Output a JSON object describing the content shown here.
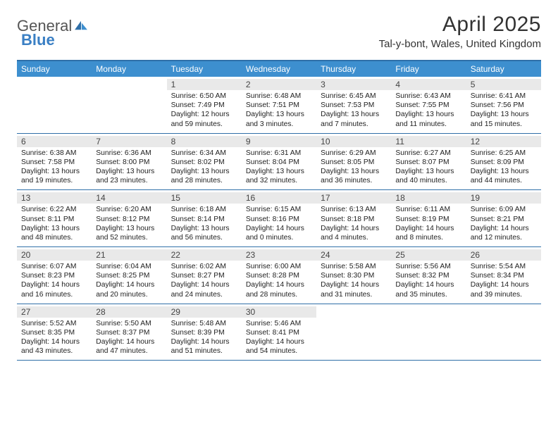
{
  "logo": {
    "text1": "General",
    "text2": "Blue"
  },
  "title": "April 2025",
  "location": "Tal-y-bont, Wales, United Kingdom",
  "colors": {
    "header_blue": "#3d8fcf",
    "rule_blue": "#2f6fa8",
    "daynum_bg": "#e9e9e9",
    "logo_blue": "#3a7fc4"
  },
  "weekdays": [
    "Sunday",
    "Monday",
    "Tuesday",
    "Wednesday",
    "Thursday",
    "Friday",
    "Saturday"
  ],
  "weeks": [
    [
      {
        "n": "",
        "sr": "",
        "ss": "",
        "dl1": "",
        "dl2": ""
      },
      {
        "n": "",
        "sr": "",
        "ss": "",
        "dl1": "",
        "dl2": ""
      },
      {
        "n": "1",
        "sr": "Sunrise: 6:50 AM",
        "ss": "Sunset: 7:49 PM",
        "dl1": "Daylight: 12 hours",
        "dl2": "and 59 minutes."
      },
      {
        "n": "2",
        "sr": "Sunrise: 6:48 AM",
        "ss": "Sunset: 7:51 PM",
        "dl1": "Daylight: 13 hours",
        "dl2": "and 3 minutes."
      },
      {
        "n": "3",
        "sr": "Sunrise: 6:45 AM",
        "ss": "Sunset: 7:53 PM",
        "dl1": "Daylight: 13 hours",
        "dl2": "and 7 minutes."
      },
      {
        "n": "4",
        "sr": "Sunrise: 6:43 AM",
        "ss": "Sunset: 7:55 PM",
        "dl1": "Daylight: 13 hours",
        "dl2": "and 11 minutes."
      },
      {
        "n": "5",
        "sr": "Sunrise: 6:41 AM",
        "ss": "Sunset: 7:56 PM",
        "dl1": "Daylight: 13 hours",
        "dl2": "and 15 minutes."
      }
    ],
    [
      {
        "n": "6",
        "sr": "Sunrise: 6:38 AM",
        "ss": "Sunset: 7:58 PM",
        "dl1": "Daylight: 13 hours",
        "dl2": "and 19 minutes."
      },
      {
        "n": "7",
        "sr": "Sunrise: 6:36 AM",
        "ss": "Sunset: 8:00 PM",
        "dl1": "Daylight: 13 hours",
        "dl2": "and 23 minutes."
      },
      {
        "n": "8",
        "sr": "Sunrise: 6:34 AM",
        "ss": "Sunset: 8:02 PM",
        "dl1": "Daylight: 13 hours",
        "dl2": "and 28 minutes."
      },
      {
        "n": "9",
        "sr": "Sunrise: 6:31 AM",
        "ss": "Sunset: 8:04 PM",
        "dl1": "Daylight: 13 hours",
        "dl2": "and 32 minutes."
      },
      {
        "n": "10",
        "sr": "Sunrise: 6:29 AM",
        "ss": "Sunset: 8:05 PM",
        "dl1": "Daylight: 13 hours",
        "dl2": "and 36 minutes."
      },
      {
        "n": "11",
        "sr": "Sunrise: 6:27 AM",
        "ss": "Sunset: 8:07 PM",
        "dl1": "Daylight: 13 hours",
        "dl2": "and 40 minutes."
      },
      {
        "n": "12",
        "sr": "Sunrise: 6:25 AM",
        "ss": "Sunset: 8:09 PM",
        "dl1": "Daylight: 13 hours",
        "dl2": "and 44 minutes."
      }
    ],
    [
      {
        "n": "13",
        "sr": "Sunrise: 6:22 AM",
        "ss": "Sunset: 8:11 PM",
        "dl1": "Daylight: 13 hours",
        "dl2": "and 48 minutes."
      },
      {
        "n": "14",
        "sr": "Sunrise: 6:20 AM",
        "ss": "Sunset: 8:12 PM",
        "dl1": "Daylight: 13 hours",
        "dl2": "and 52 minutes."
      },
      {
        "n": "15",
        "sr": "Sunrise: 6:18 AM",
        "ss": "Sunset: 8:14 PM",
        "dl1": "Daylight: 13 hours",
        "dl2": "and 56 minutes."
      },
      {
        "n": "16",
        "sr": "Sunrise: 6:15 AM",
        "ss": "Sunset: 8:16 PM",
        "dl1": "Daylight: 14 hours",
        "dl2": "and 0 minutes."
      },
      {
        "n": "17",
        "sr": "Sunrise: 6:13 AM",
        "ss": "Sunset: 8:18 PM",
        "dl1": "Daylight: 14 hours",
        "dl2": "and 4 minutes."
      },
      {
        "n": "18",
        "sr": "Sunrise: 6:11 AM",
        "ss": "Sunset: 8:19 PM",
        "dl1": "Daylight: 14 hours",
        "dl2": "and 8 minutes."
      },
      {
        "n": "19",
        "sr": "Sunrise: 6:09 AM",
        "ss": "Sunset: 8:21 PM",
        "dl1": "Daylight: 14 hours",
        "dl2": "and 12 minutes."
      }
    ],
    [
      {
        "n": "20",
        "sr": "Sunrise: 6:07 AM",
        "ss": "Sunset: 8:23 PM",
        "dl1": "Daylight: 14 hours",
        "dl2": "and 16 minutes."
      },
      {
        "n": "21",
        "sr": "Sunrise: 6:04 AM",
        "ss": "Sunset: 8:25 PM",
        "dl1": "Daylight: 14 hours",
        "dl2": "and 20 minutes."
      },
      {
        "n": "22",
        "sr": "Sunrise: 6:02 AM",
        "ss": "Sunset: 8:27 PM",
        "dl1": "Daylight: 14 hours",
        "dl2": "and 24 minutes."
      },
      {
        "n": "23",
        "sr": "Sunrise: 6:00 AM",
        "ss": "Sunset: 8:28 PM",
        "dl1": "Daylight: 14 hours",
        "dl2": "and 28 minutes."
      },
      {
        "n": "24",
        "sr": "Sunrise: 5:58 AM",
        "ss": "Sunset: 8:30 PM",
        "dl1": "Daylight: 14 hours",
        "dl2": "and 31 minutes."
      },
      {
        "n": "25",
        "sr": "Sunrise: 5:56 AM",
        "ss": "Sunset: 8:32 PM",
        "dl1": "Daylight: 14 hours",
        "dl2": "and 35 minutes."
      },
      {
        "n": "26",
        "sr": "Sunrise: 5:54 AM",
        "ss": "Sunset: 8:34 PM",
        "dl1": "Daylight: 14 hours",
        "dl2": "and 39 minutes."
      }
    ],
    [
      {
        "n": "27",
        "sr": "Sunrise: 5:52 AM",
        "ss": "Sunset: 8:35 PM",
        "dl1": "Daylight: 14 hours",
        "dl2": "and 43 minutes."
      },
      {
        "n": "28",
        "sr": "Sunrise: 5:50 AM",
        "ss": "Sunset: 8:37 PM",
        "dl1": "Daylight: 14 hours",
        "dl2": "and 47 minutes."
      },
      {
        "n": "29",
        "sr": "Sunrise: 5:48 AM",
        "ss": "Sunset: 8:39 PM",
        "dl1": "Daylight: 14 hours",
        "dl2": "and 51 minutes."
      },
      {
        "n": "30",
        "sr": "Sunrise: 5:46 AM",
        "ss": "Sunset: 8:41 PM",
        "dl1": "Daylight: 14 hours",
        "dl2": "and 54 minutes."
      },
      {
        "n": "",
        "sr": "",
        "ss": "",
        "dl1": "",
        "dl2": ""
      },
      {
        "n": "",
        "sr": "",
        "ss": "",
        "dl1": "",
        "dl2": ""
      },
      {
        "n": "",
        "sr": "",
        "ss": "",
        "dl1": "",
        "dl2": ""
      }
    ]
  ]
}
